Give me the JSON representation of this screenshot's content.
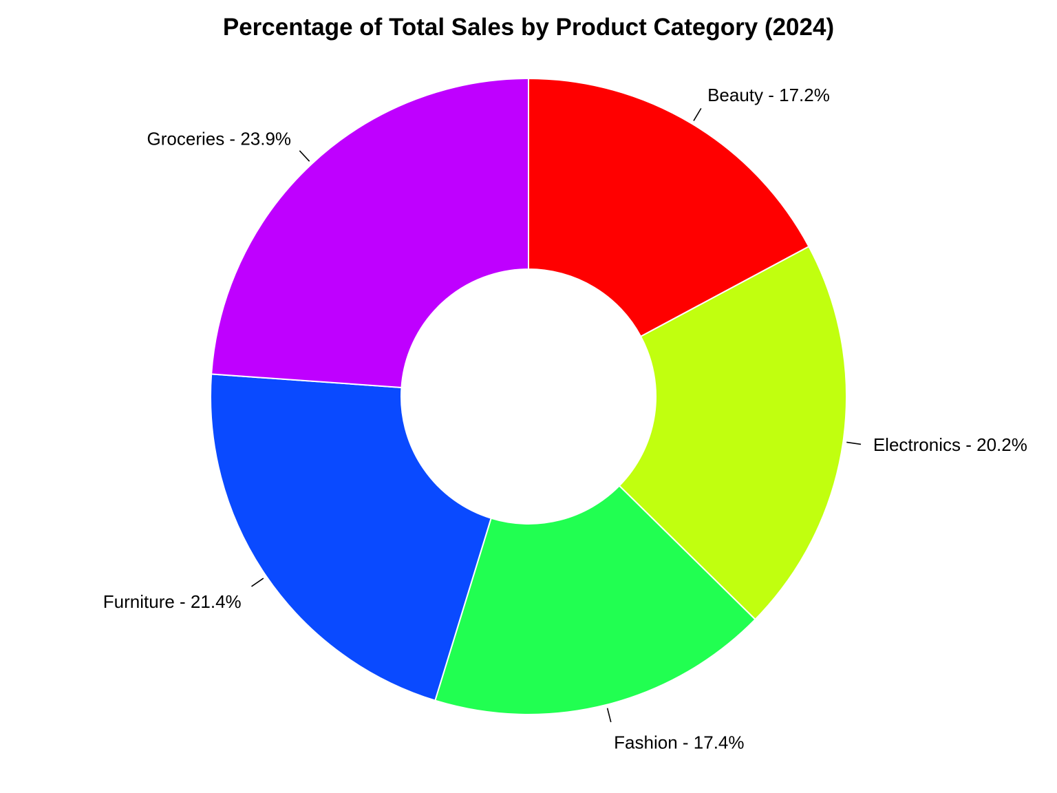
{
  "chart_data": {
    "type": "pie",
    "donut": true,
    "title": "Percentage of Total Sales by Product Category (2024)",
    "slices": [
      {
        "label": "Beauty",
        "value": 17.2,
        "color": "#FF0000",
        "display": "Beauty - 17.2%"
      },
      {
        "label": "Electronics",
        "value": 20.2,
        "color": "#C1FF0F",
        "display": "Electronics - 20.2%"
      },
      {
        "label": "Fashion",
        "value": 17.4,
        "color": "#21FF51",
        "display": "Fashion - 17.4%"
      },
      {
        "label": "Furniture",
        "value": 21.4,
        "color": "#0A4AFF",
        "display": "Furniture - 21.4%"
      },
      {
        "label": "Groceries",
        "value": 23.9,
        "color": "#BF00FF",
        "display": "Groceries - 23.9%"
      }
    ],
    "start": "top",
    "direction": "clockwise",
    "legend": "none"
  }
}
